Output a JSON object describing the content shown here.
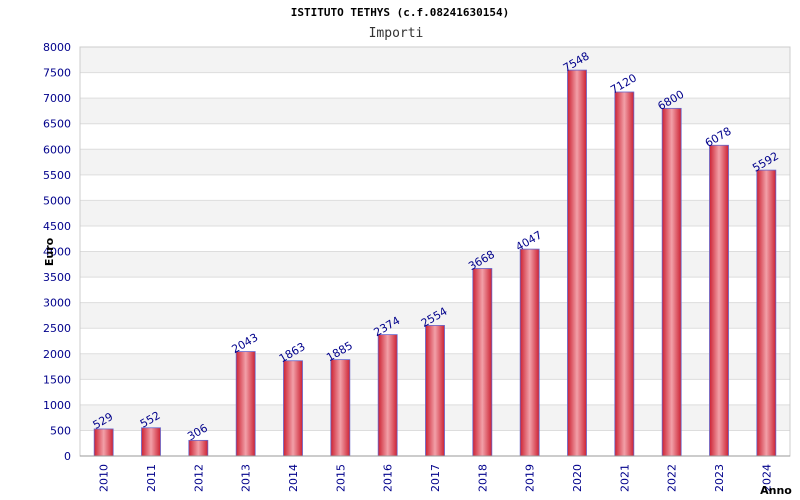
{
  "chart_data": {
    "type": "bar",
    "title": "ISTITUTO TETHYS (c.f.08241630154)",
    "subtitle": "Importi",
    "xlabel": "Anno",
    "ylabel": "Euro",
    "categories": [
      "2010",
      "2011",
      "2012",
      "2013",
      "2014",
      "2015",
      "2016",
      "2017",
      "2018",
      "2019",
      "2020",
      "2021",
      "2022",
      "2023",
      "2024"
    ],
    "values": [
      529,
      552,
      306,
      2043,
      1863,
      1885,
      2374,
      2554,
      3668,
      4047,
      7548,
      7120,
      6800,
      6078,
      5592
    ],
    "ylim": [
      0,
      8000
    ],
    "yticks": [
      "0",
      "500",
      "1000",
      "1500",
      "2000",
      "2500",
      "3000",
      "3500",
      "4000",
      "4500",
      "5000",
      "5500",
      "6000",
      "6500",
      "7000",
      "7500",
      "8000"
    ],
    "grid": true,
    "colors": {
      "bar_edge": "#cc2233",
      "bar_mid": "#f2a0a8",
      "bar_border": "#6666cc",
      "band": "#f3f3f3",
      "grid": "#dddddd",
      "text": "#00008b"
    }
  }
}
